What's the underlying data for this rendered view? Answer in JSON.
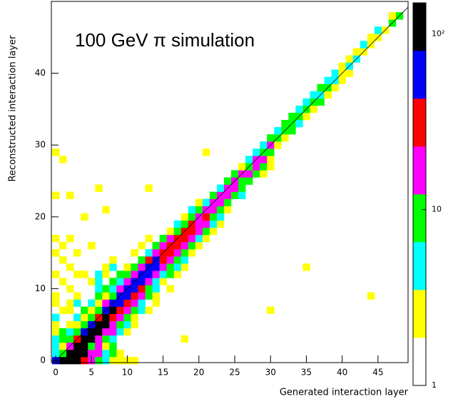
{
  "chart_data": {
    "type": "heatmap",
    "annotation": "100 GeV π simulation",
    "x_label": "Generated interaction layer",
    "y_label": "Reconstructed interaction layer",
    "xlim": [
      -0.6,
      49.2
    ],
    "ylim": [
      -0.3,
      50
    ],
    "xticks": [
      0,
      5,
      10,
      15,
      20,
      25,
      30,
      35,
      40,
      45
    ],
    "yticks": [
      0,
      10,
      20,
      30,
      40
    ],
    "zscale": "log",
    "zlim": [
      1,
      150
    ],
    "zticks": [
      1,
      10,
      {
        "value": 100,
        "label": "10²"
      }
    ],
    "colors": [
      "#ffffff",
      "#ffff00",
      "#00ffff",
      "#00ff00",
      "#ff00ff",
      "#ff0000",
      "#0000ff",
      "#000000"
    ],
    "cells": [
      [
        0,
        0,
        65
      ],
      [
        1,
        0,
        120
      ],
      [
        2,
        0,
        120
      ],
      [
        3,
        0,
        120
      ],
      [
        4,
        0,
        35
      ],
      [
        5,
        0,
        18
      ],
      [
        6,
        0,
        9
      ],
      [
        7,
        0,
        5
      ],
      [
        8,
        0,
        2
      ],
      [
        9,
        0,
        2
      ],
      [
        10,
        0,
        2
      ],
      [
        11,
        0,
        2
      ],
      [
        0,
        1,
        5
      ],
      [
        1,
        1,
        9
      ],
      [
        2,
        1,
        120
      ],
      [
        3,
        1,
        120
      ],
      [
        4,
        1,
        120
      ],
      [
        5,
        1,
        18
      ],
      [
        6,
        1,
        18
      ],
      [
        7,
        1,
        5
      ],
      [
        8,
        1,
        9
      ],
      [
        9,
        1,
        2
      ],
      [
        0,
        2,
        5
      ],
      [
        1,
        2,
        2
      ],
      [
        2,
        2,
        18
      ],
      [
        3,
        2,
        120
      ],
      [
        4,
        2,
        120
      ],
      [
        5,
        2,
        9
      ],
      [
        6,
        2,
        18
      ],
      [
        7,
        2,
        2
      ],
      [
        8,
        2,
        9
      ],
      [
        0,
        3,
        5
      ],
      [
        1,
        3,
        9
      ],
      [
        2,
        3,
        9
      ],
      [
        3,
        3,
        35
      ],
      [
        4,
        3,
        120
      ],
      [
        5,
        3,
        120
      ],
      [
        6,
        3,
        18
      ],
      [
        7,
        3,
        9
      ],
      [
        8,
        3,
        5
      ],
      [
        18,
        3,
        2
      ],
      [
        0,
        4,
        2
      ],
      [
        1,
        4,
        9
      ],
      [
        2,
        4,
        5
      ],
      [
        3,
        4,
        9
      ],
      [
        4,
        4,
        65
      ],
      [
        5,
        4,
        120
      ],
      [
        6,
        4,
        120
      ],
      [
        7,
        4,
        18
      ],
      [
        8,
        4,
        18
      ],
      [
        9,
        4,
        5
      ],
      [
        10,
        4,
        2
      ],
      [
        0,
        5,
        2
      ],
      [
        2,
        5,
        2
      ],
      [
        3,
        5,
        2
      ],
      [
        4,
        5,
        9
      ],
      [
        5,
        5,
        65
      ],
      [
        6,
        5,
        120
      ],
      [
        7,
        5,
        120
      ],
      [
        8,
        5,
        18
      ],
      [
        9,
        5,
        9
      ],
      [
        10,
        5,
        5
      ],
      [
        11,
        5,
        2
      ],
      [
        0,
        6,
        5
      ],
      [
        3,
        6,
        5
      ],
      [
        4,
        6,
        2
      ],
      [
        5,
        6,
        9
      ],
      [
        6,
        6,
        35
      ],
      [
        7,
        6,
        120
      ],
      [
        8,
        6,
        35
      ],
      [
        9,
        6,
        18
      ],
      [
        10,
        6,
        9
      ],
      [
        11,
        6,
        2
      ],
      [
        1,
        7,
        2
      ],
      [
        2,
        7,
        2
      ],
      [
        4,
        7,
        9
      ],
      [
        5,
        7,
        2
      ],
      [
        6,
        7,
        9
      ],
      [
        7,
        7,
        65
      ],
      [
        8,
        7,
        120
      ],
      [
        9,
        7,
        35
      ],
      [
        10,
        7,
        18
      ],
      [
        11,
        7,
        9
      ],
      [
        12,
        7,
        5
      ],
      [
        13,
        7,
        2
      ],
      [
        30,
        7,
        2
      ],
      [
        0,
        8,
        2
      ],
      [
        2,
        8,
        2
      ],
      [
        3,
        8,
        5
      ],
      [
        5,
        8,
        5
      ],
      [
        6,
        8,
        2
      ],
      [
        7,
        8,
        18
      ],
      [
        8,
        8,
        65
      ],
      [
        9,
        8,
        65
      ],
      [
        10,
        8,
        35
      ],
      [
        11,
        8,
        18
      ],
      [
        12,
        8,
        5
      ],
      [
        14,
        8,
        2
      ],
      [
        0,
        9,
        2
      ],
      [
        3,
        9,
        2
      ],
      [
        6,
        9,
        9
      ],
      [
        7,
        9,
        2
      ],
      [
        8,
        9,
        9
      ],
      [
        9,
        9,
        65
      ],
      [
        10,
        9,
        65
      ],
      [
        11,
        9,
        35
      ],
      [
        12,
        9,
        18
      ],
      [
        13,
        9,
        9
      ],
      [
        14,
        9,
        2
      ],
      [
        44,
        9,
        2
      ],
      [
        2,
        10,
        2
      ],
      [
        6,
        10,
        5
      ],
      [
        7,
        10,
        9
      ],
      [
        8,
        10,
        5
      ],
      [
        9,
        10,
        18
      ],
      [
        10,
        10,
        65
      ],
      [
        11,
        10,
        65
      ],
      [
        12,
        10,
        35
      ],
      [
        13,
        10,
        9
      ],
      [
        14,
        10,
        5
      ],
      [
        16,
        10,
        2
      ],
      [
        1,
        11,
        2
      ],
      [
        5,
        11,
        2
      ],
      [
        6,
        11,
        5
      ],
      [
        8,
        11,
        9
      ],
      [
        9,
        11,
        5
      ],
      [
        10,
        11,
        18
      ],
      [
        11,
        11,
        65
      ],
      [
        12,
        11,
        65
      ],
      [
        13,
        11,
        18
      ],
      [
        14,
        11,
        5
      ],
      [
        15,
        11,
        2
      ],
      [
        0,
        12,
        2
      ],
      [
        3,
        12,
        2
      ],
      [
        4,
        12,
        2
      ],
      [
        6,
        12,
        5
      ],
      [
        7,
        12,
        2
      ],
      [
        9,
        12,
        9
      ],
      [
        10,
        12,
        9
      ],
      [
        11,
        12,
        18
      ],
      [
        12,
        12,
        65
      ],
      [
        13,
        12,
        65
      ],
      [
        14,
        12,
        18
      ],
      [
        15,
        12,
        5
      ],
      [
        16,
        12,
        9
      ],
      [
        17,
        12,
        2
      ],
      [
        2,
        13,
        2
      ],
      [
        7,
        13,
        2
      ],
      [
        8,
        13,
        5
      ],
      [
        10,
        13,
        2
      ],
      [
        11,
        13,
        9
      ],
      [
        12,
        13,
        18
      ],
      [
        13,
        13,
        65
      ],
      [
        14,
        13,
        65
      ],
      [
        15,
        13,
        18
      ],
      [
        16,
        13,
        9
      ],
      [
        17,
        13,
        5
      ],
      [
        18,
        13,
        2
      ],
      [
        35,
        13,
        2
      ],
      [
        1,
        14,
        2
      ],
      [
        8,
        14,
        2
      ],
      [
        12,
        14,
        9
      ],
      [
        13,
        14,
        35
      ],
      [
        14,
        14,
        65
      ],
      [
        15,
        14,
        35
      ],
      [
        16,
        14,
        18
      ],
      [
        17,
        14,
        9
      ],
      [
        18,
        14,
        5
      ],
      [
        0,
        15,
        2
      ],
      [
        3,
        15,
        2
      ],
      [
        11,
        15,
        2
      ],
      [
        13,
        15,
        5
      ],
      [
        14,
        15,
        18
      ],
      [
        15,
        15,
        35
      ],
      [
        16,
        15,
        35
      ],
      [
        17,
        15,
        18
      ],
      [
        18,
        15,
        9
      ],
      [
        19,
        15,
        2
      ],
      [
        1,
        16,
        2
      ],
      [
        5,
        16,
        2
      ],
      [
        12,
        16,
        2
      ],
      [
        14,
        16,
        9
      ],
      [
        15,
        16,
        18
      ],
      [
        16,
        16,
        35
      ],
      [
        17,
        16,
        35
      ],
      [
        18,
        16,
        18
      ],
      [
        19,
        16,
        9
      ],
      [
        20,
        16,
        2
      ],
      [
        0,
        17,
        2
      ],
      [
        2,
        17,
        2
      ],
      [
        13,
        17,
        2
      ],
      [
        15,
        17,
        9
      ],
      [
        16,
        17,
        18
      ],
      [
        17,
        17,
        35
      ],
      [
        18,
        17,
        35
      ],
      [
        19,
        17,
        18
      ],
      [
        20,
        17,
        5
      ],
      [
        21,
        17,
        2
      ],
      [
        16,
        18,
        2
      ],
      [
        17,
        18,
        9
      ],
      [
        18,
        18,
        35
      ],
      [
        19,
        18,
        35
      ],
      [
        20,
        18,
        18
      ],
      [
        21,
        18,
        9
      ],
      [
        22,
        18,
        2
      ],
      [
        17,
        19,
        5
      ],
      [
        18,
        19,
        9
      ],
      [
        19,
        19,
        35
      ],
      [
        20,
        19,
        18
      ],
      [
        21,
        19,
        18
      ],
      [
        22,
        19,
        5
      ],
      [
        23,
        19,
        2
      ],
      [
        4,
        20,
        2
      ],
      [
        18,
        20,
        2
      ],
      [
        19,
        20,
        9
      ],
      [
        20,
        20,
        18
      ],
      [
        21,
        20,
        35
      ],
      [
        22,
        20,
        9
      ],
      [
        23,
        20,
        5
      ],
      [
        7,
        21,
        2
      ],
      [
        19,
        21,
        5
      ],
      [
        20,
        21,
        9
      ],
      [
        21,
        21,
        18
      ],
      [
        22,
        21,
        18
      ],
      [
        23,
        21,
        9
      ],
      [
        24,
        21,
        2
      ],
      [
        20,
        22,
        2
      ],
      [
        21,
        22,
        5
      ],
      [
        22,
        22,
        18
      ],
      [
        23,
        22,
        18
      ],
      [
        24,
        22,
        9
      ],
      [
        0,
        23,
        2
      ],
      [
        2,
        23,
        2
      ],
      [
        22,
        23,
        9
      ],
      [
        23,
        23,
        18
      ],
      [
        24,
        23,
        18
      ],
      [
        25,
        23,
        9
      ],
      [
        26,
        23,
        5
      ],
      [
        6,
        24,
        2
      ],
      [
        13,
        24,
        2
      ],
      [
        23,
        24,
        5
      ],
      [
        24,
        24,
        18
      ],
      [
        25,
        24,
        18
      ],
      [
        26,
        24,
        9
      ],
      [
        24,
        25,
        9
      ],
      [
        25,
        25,
        18
      ],
      [
        26,
        25,
        9
      ],
      [
        27,
        25,
        9
      ],
      [
        25,
        26,
        9
      ],
      [
        26,
        26,
        18
      ],
      [
        27,
        26,
        18
      ],
      [
        28,
        26,
        9
      ],
      [
        29,
        26,
        2
      ],
      [
        26,
        27,
        2
      ],
      [
        27,
        27,
        9
      ],
      [
        28,
        27,
        18
      ],
      [
        29,
        27,
        9
      ],
      [
        30,
        27,
        2
      ],
      [
        1,
        28,
        2
      ],
      [
        27,
        28,
        5
      ],
      [
        28,
        28,
        18
      ],
      [
        29,
        28,
        18
      ],
      [
        30,
        28,
        2
      ],
      [
        0,
        29,
        2
      ],
      [
        21,
        29,
        2
      ],
      [
        28,
        29,
        5
      ],
      [
        29,
        29,
        9
      ],
      [
        30,
        29,
        9
      ],
      [
        29,
        30,
        5
      ],
      [
        30,
        30,
        18
      ],
      [
        31,
        30,
        2
      ],
      [
        30,
        31,
        9
      ],
      [
        31,
        31,
        9
      ],
      [
        32,
        31,
        2
      ],
      [
        31,
        32,
        5
      ],
      [
        32,
        32,
        9
      ],
      [
        33,
        32,
        9
      ],
      [
        32,
        33,
        9
      ],
      [
        33,
        33,
        9
      ],
      [
        34,
        33,
        5
      ],
      [
        33,
        34,
        9
      ],
      [
        34,
        34,
        9
      ],
      [
        35,
        34,
        2
      ],
      [
        34,
        35,
        5
      ],
      [
        35,
        35,
        9
      ],
      [
        36,
        35,
        2
      ],
      [
        35,
        36,
        5
      ],
      [
        36,
        36,
        9
      ],
      [
        37,
        36,
        9
      ],
      [
        36,
        37,
        5
      ],
      [
        37,
        37,
        5
      ],
      [
        38,
        37,
        2
      ],
      [
        37,
        38,
        9
      ],
      [
        38,
        38,
        9
      ],
      [
        39,
        38,
        2
      ],
      [
        38,
        39,
        5
      ],
      [
        39,
        39,
        5
      ],
      [
        40,
        39,
        2
      ],
      [
        39,
        40,
        5
      ],
      [
        40,
        40,
        2
      ],
      [
        41,
        40,
        2
      ],
      [
        40,
        41,
        2
      ],
      [
        41,
        41,
        5
      ],
      [
        41,
        42,
        2
      ],
      [
        42,
        42,
        5
      ],
      [
        42,
        43,
        2
      ],
      [
        43,
        43,
        2
      ],
      [
        43,
        44,
        5
      ],
      [
        44,
        44,
        2
      ],
      [
        44,
        45,
        2
      ],
      [
        45,
        45,
        2
      ],
      [
        45,
        46,
        5
      ],
      [
        46,
        46,
        2
      ],
      [
        47,
        47,
        9
      ],
      [
        47,
        48,
        2
      ],
      [
        48,
        48,
        9
      ]
    ]
  }
}
